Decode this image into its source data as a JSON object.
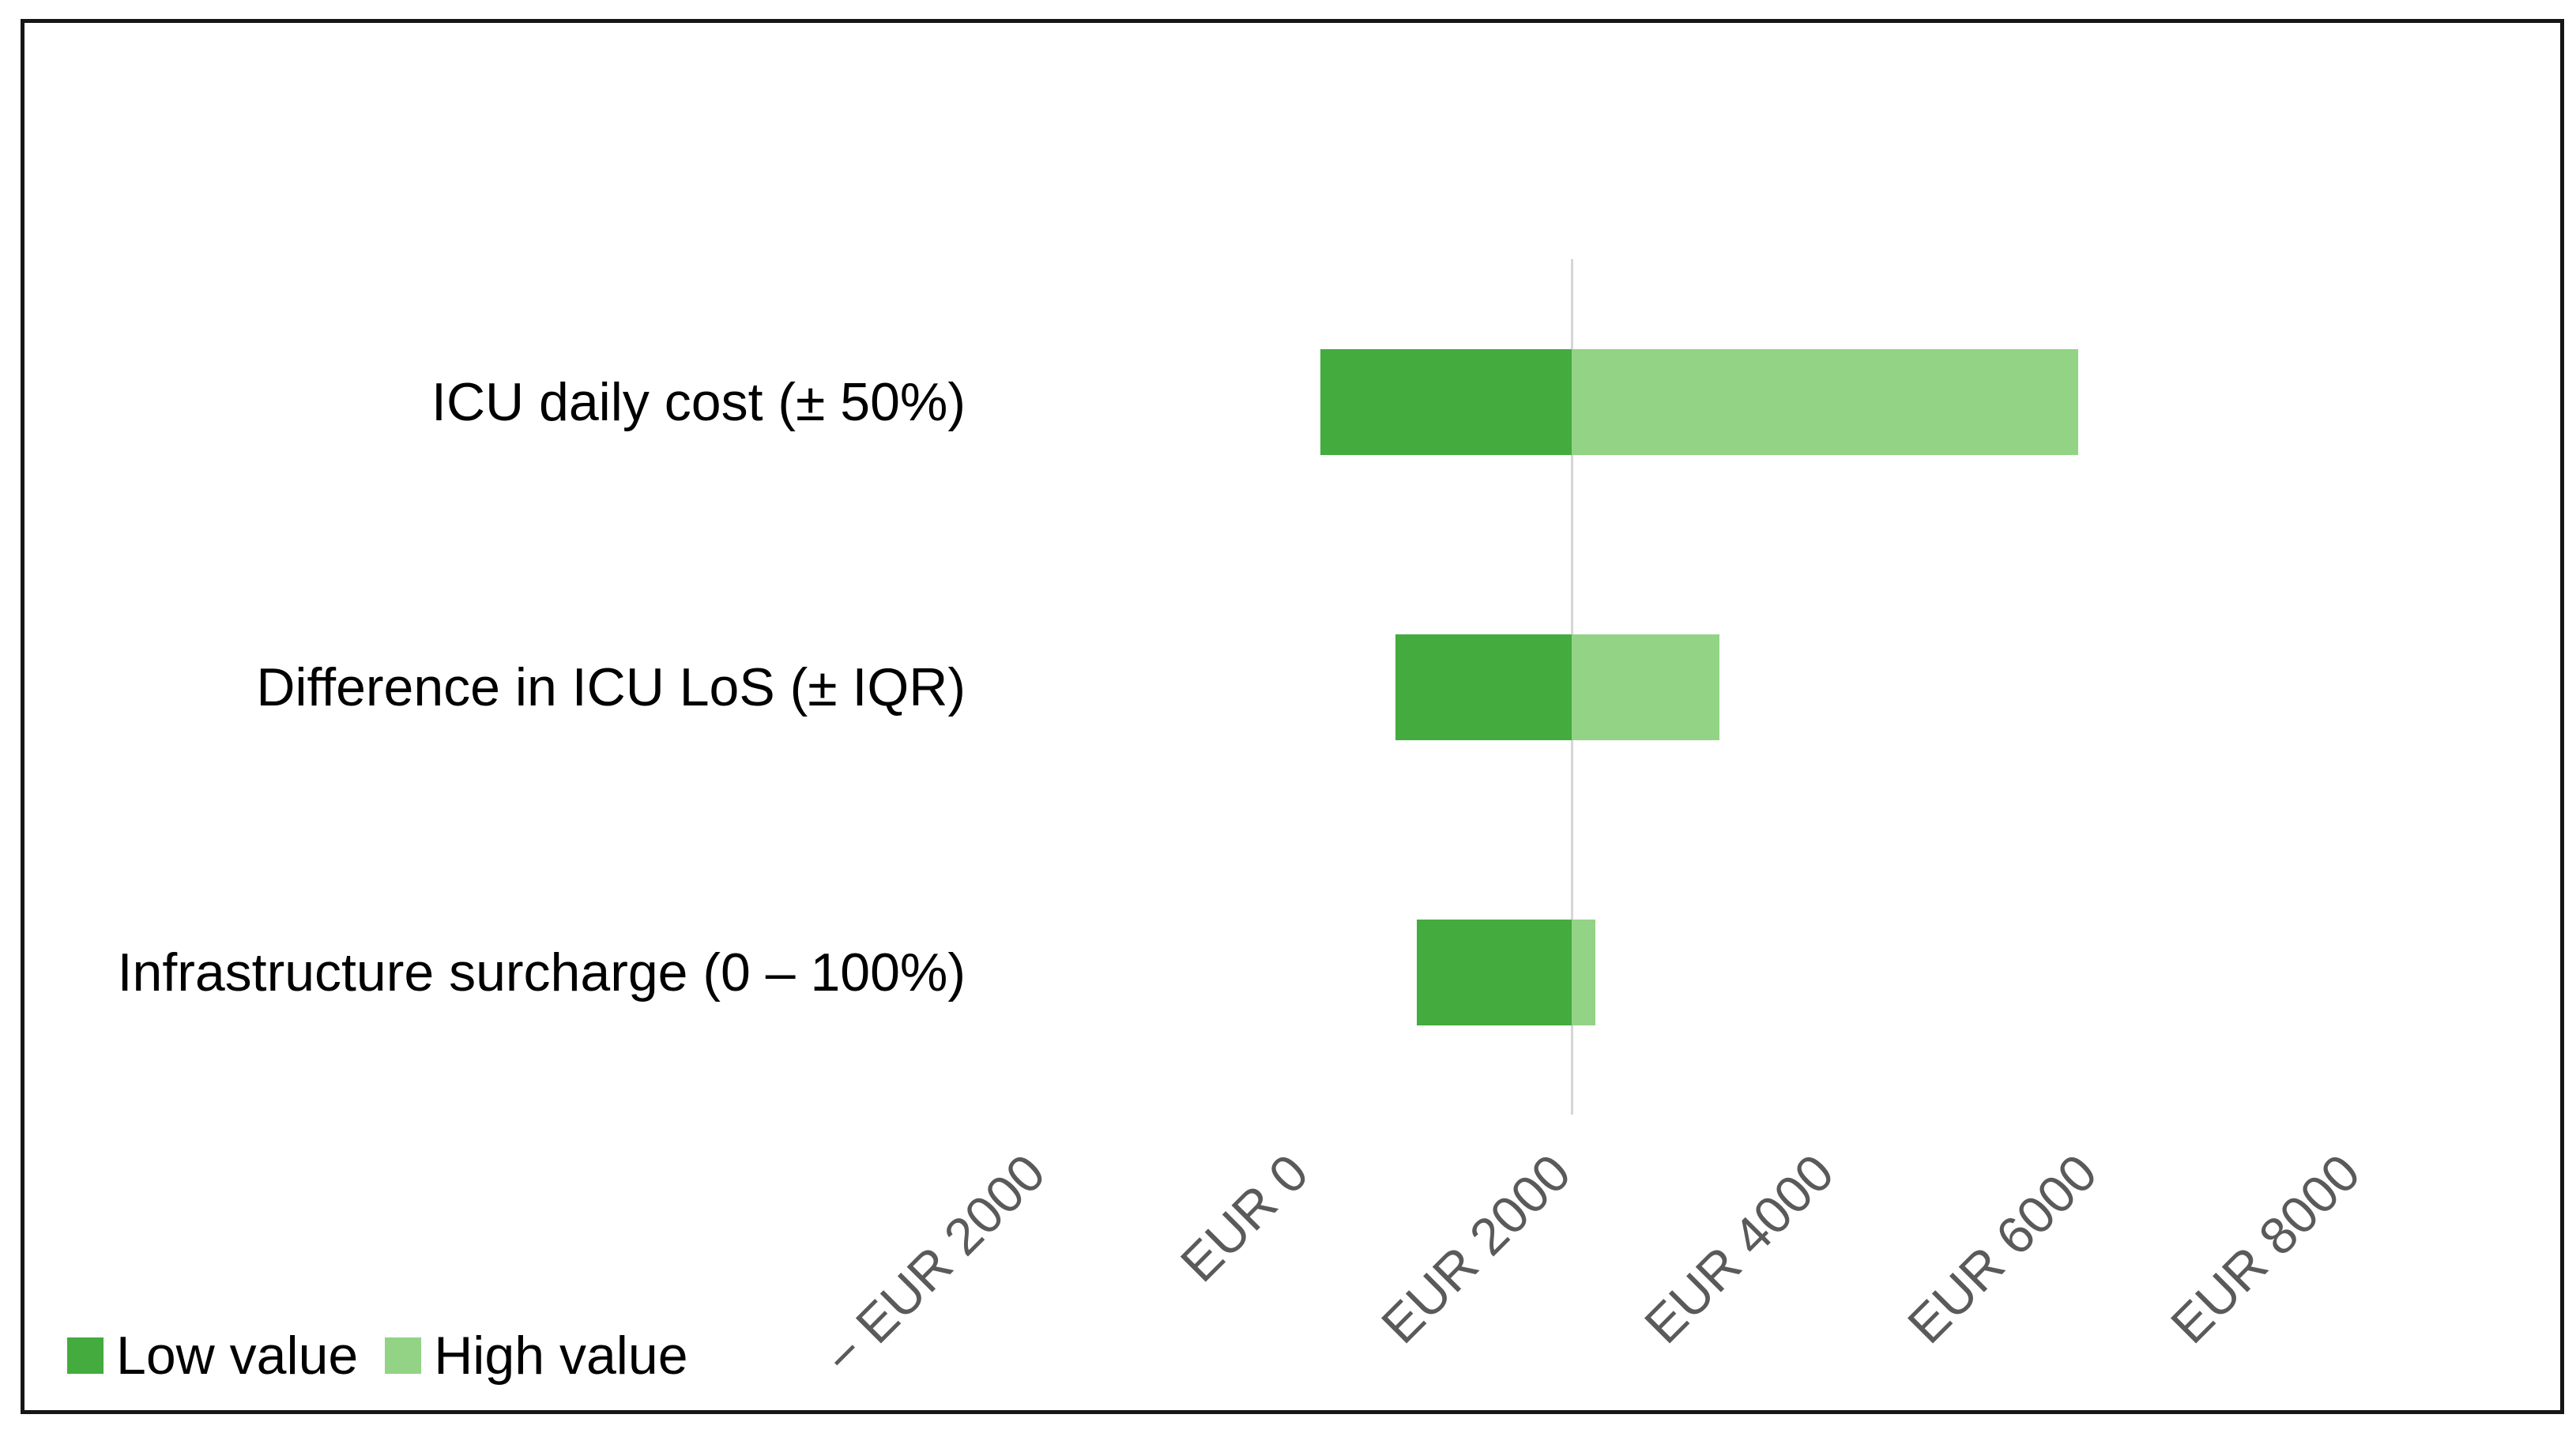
{
  "chart_data": {
    "type": "bar",
    "orientation": "horizontal",
    "subtype": "tornado-sensitivity",
    "title": "",
    "xlabel": "",
    "ylabel": "",
    "categories": [
      "ICU daily cost (± 50%)",
      "Difference in ICU LoS (± IQR)",
      "Infrastructure surcharge (0 – 100%)"
    ],
    "series": [
      {
        "name": "Low value",
        "endpoint_values_eur": [
          320,
          890,
          1050
        ]
      },
      {
        "name": "High value",
        "endpoint_values_eur": [
          6080,
          3350,
          2410
        ]
      }
    ],
    "base_value_eur": 2230,
    "xlim": [
      -2000,
      8000
    ],
    "x_tick_values": [
      -2000,
      0,
      2000,
      4000,
      6000,
      8000
    ],
    "x_tick_labels": [
      "− EUR 2000",
      "EUR 0",
      "EUR 2000",
      "EUR 4000",
      "EUR 6000",
      "EUR 8000"
    ],
    "grid": "none; single vertical base-case reference line",
    "legend_position": "bottom-left"
  },
  "legend": {
    "items": [
      {
        "label": "Low value",
        "color_key": "low"
      },
      {
        "label": "High value",
        "color_key": "high"
      }
    ]
  },
  "colors": {
    "low": "#44ab3f",
    "high": "#93d385",
    "baseline": "#d6d6d6",
    "axis_text": "#5a5a5a",
    "label_text": "#000000",
    "frame": "#161616",
    "background": "#ffffff"
  }
}
